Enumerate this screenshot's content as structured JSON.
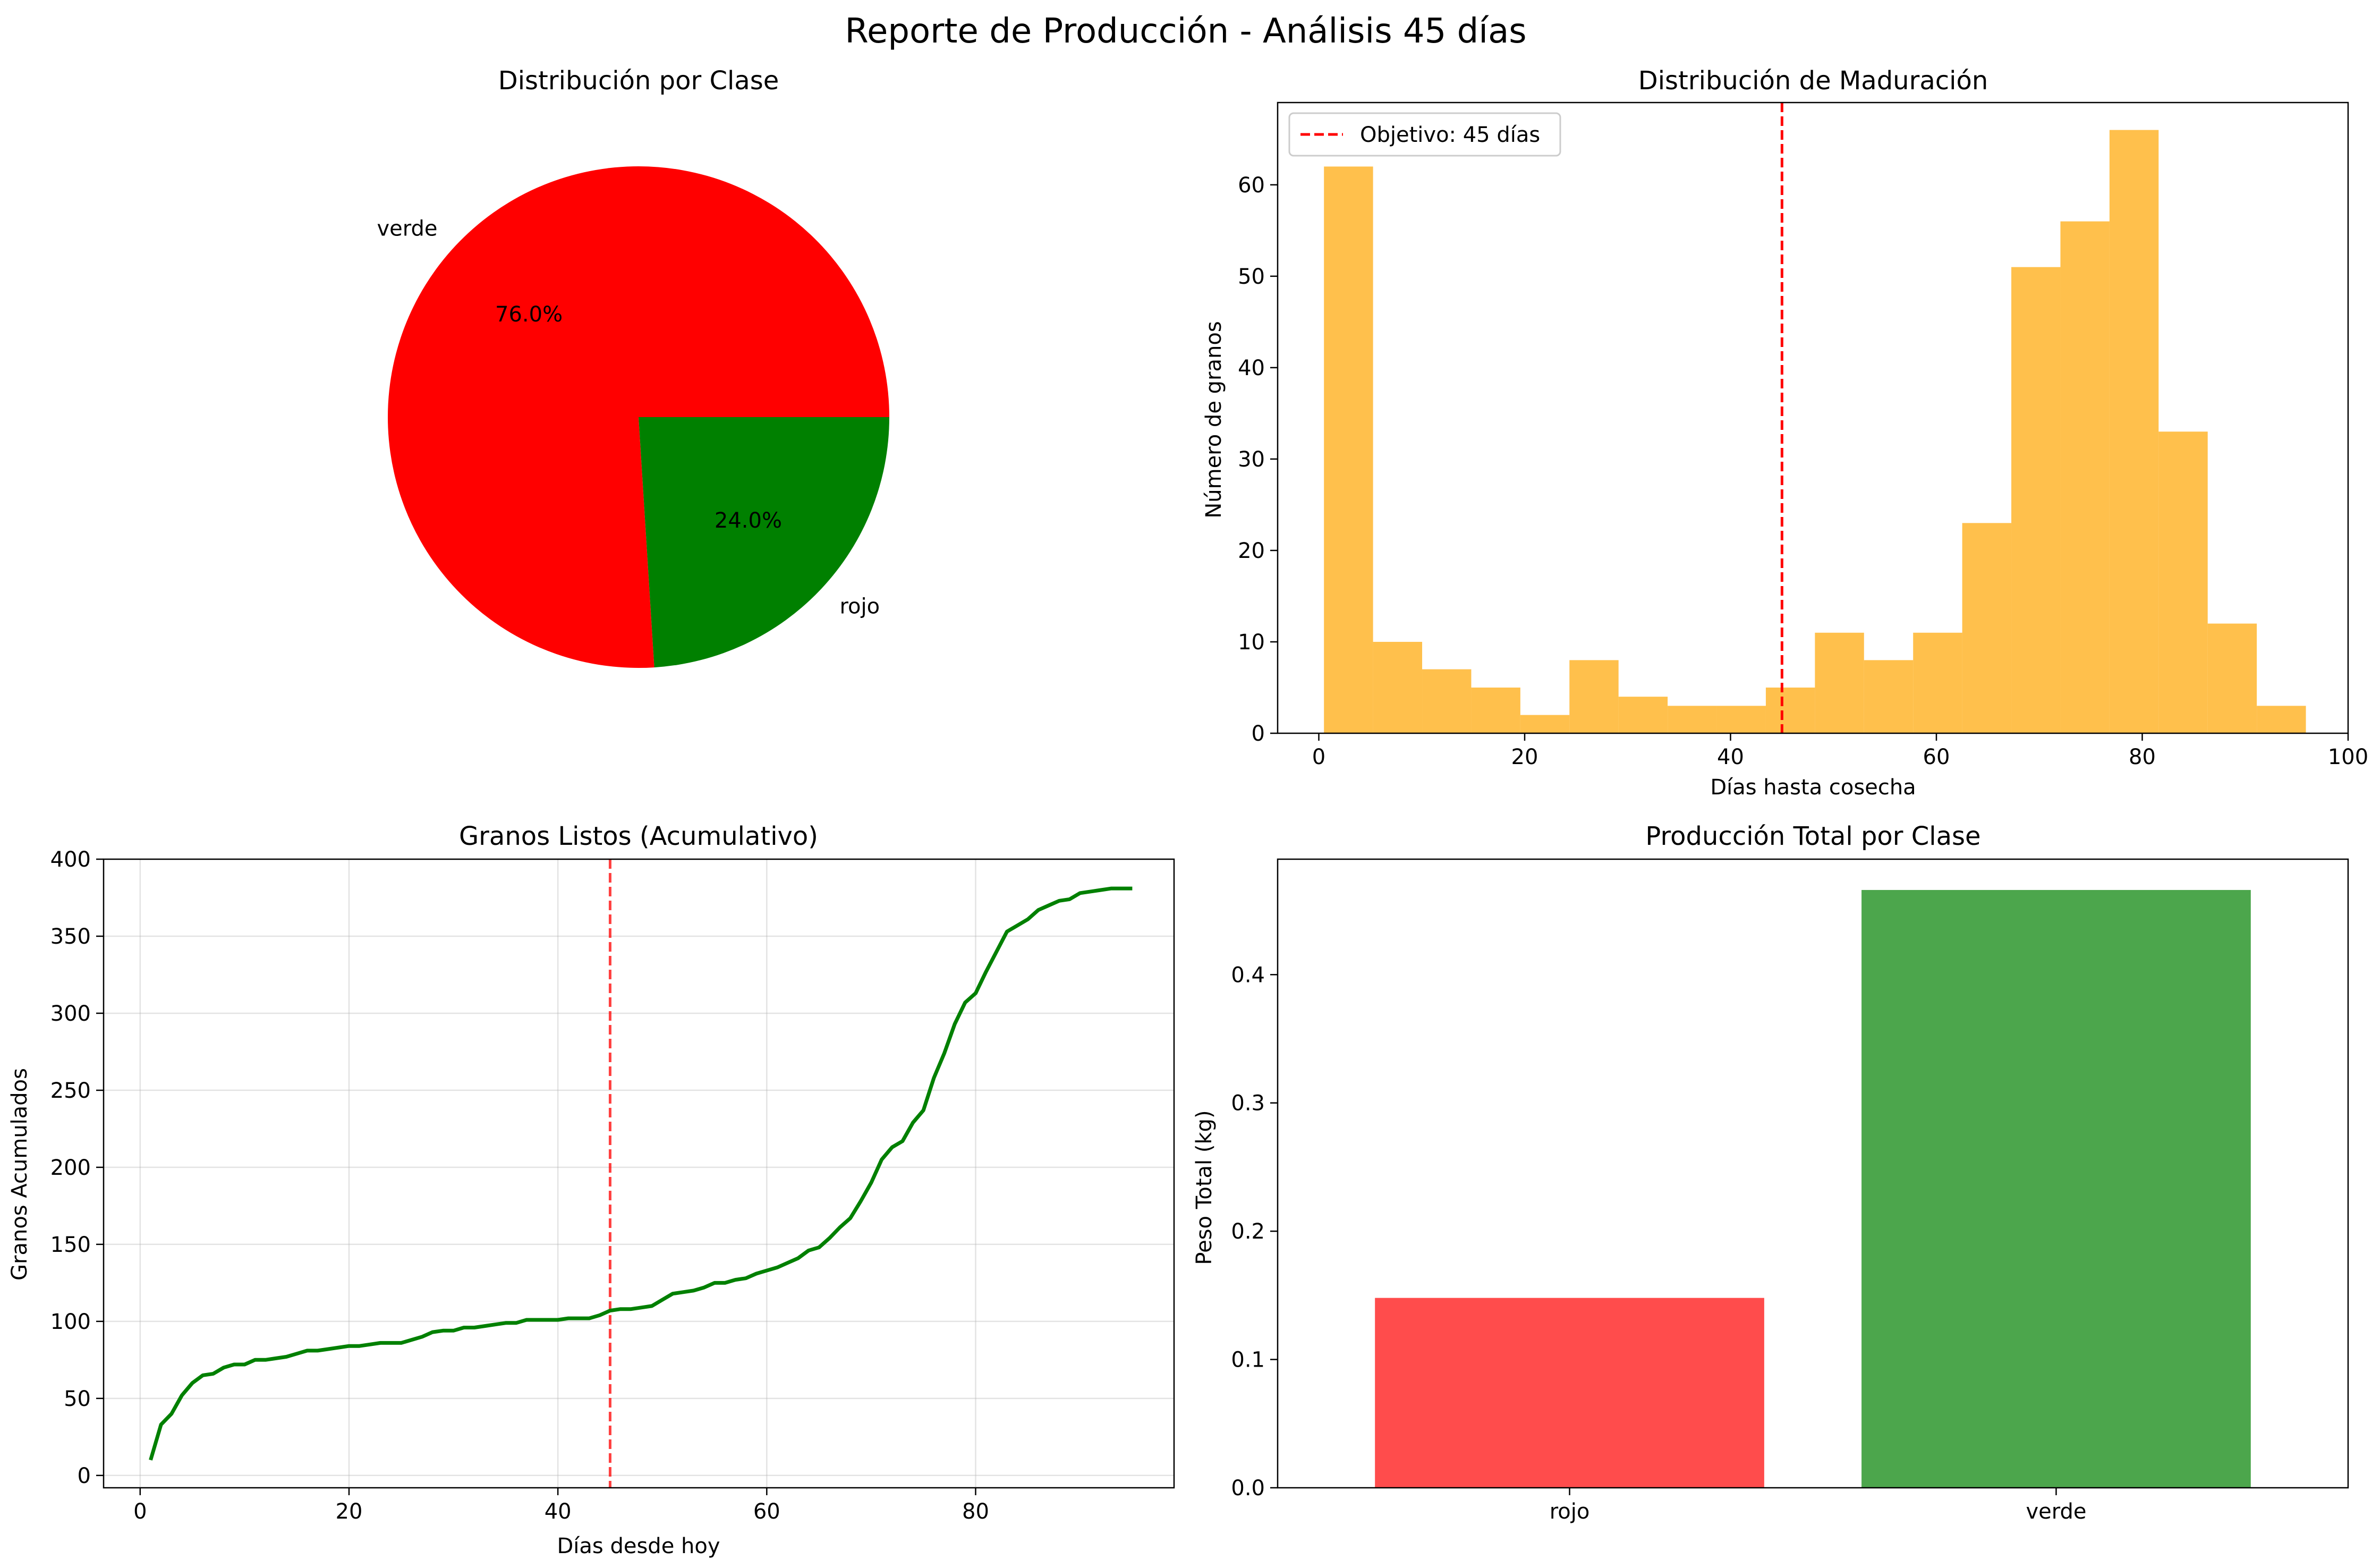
{
  "figure_title": "Reporte de Producción - Análisis 45 días",
  "chart_data": [
    {
      "type": "pie",
      "title": "Distribución por Clase",
      "slices": [
        {
          "label": "verde",
          "pct_label": "76.0%",
          "value": 76.0,
          "color": "#ff0000"
        },
        {
          "label": "rojo",
          "pct_label": "24.0%",
          "value": 24.0,
          "color": "#008000"
        }
      ]
    },
    {
      "type": "bar",
      "subtype": "histogram",
      "title": "Distribución de Maduración",
      "xlabel": "Días hasta cosecha",
      "ylabel": "Número de granos",
      "xlim": [
        -4,
        100
      ],
      "ylim": [
        0,
        69
      ],
      "xticks": [
        0,
        20,
        40,
        60,
        80,
        100
      ],
      "yticks": [
        0,
        10,
        20,
        30,
        40,
        50,
        60
      ],
      "bin_start": 0.5,
      "bin_width": 4.77,
      "counts": [
        62,
        10,
        7,
        5,
        2,
        8,
        4,
        3,
        3,
        5,
        11,
        8,
        11,
        23,
        51,
        56,
        66,
        33,
        12,
        3
      ],
      "bar_color": "#ffa500",
      "target_line": {
        "x": 45,
        "label": "Objetivo: 45 días",
        "color": "#ff0000"
      },
      "legend_position": "upper-left"
    },
    {
      "type": "line",
      "title": "Granos Listos (Acumulativo)",
      "xlabel": "Días desde hoy",
      "ylabel": "Granos Acumulados",
      "xlim": [
        -3.5,
        99
      ],
      "ylim": [
        -8,
        400
      ],
      "xticks": [
        0,
        20,
        40,
        60,
        80
      ],
      "yticks": [
        0,
        50,
        100,
        150,
        200,
        250,
        300,
        350,
        400
      ],
      "grid": true,
      "line_color": "#008000",
      "target_line": {
        "x": 45,
        "color": "#ff0000"
      },
      "points": [
        [
          1,
          10
        ],
        [
          2,
          33
        ],
        [
          3,
          40
        ],
        [
          4,
          52
        ],
        [
          5,
          60
        ],
        [
          6,
          65
        ],
        [
          7,
          66
        ],
        [
          8,
          70
        ],
        [
          9,
          72
        ],
        [
          10,
          72
        ],
        [
          11,
          75
        ],
        [
          12,
          75
        ],
        [
          13,
          76
        ],
        [
          14,
          77
        ],
        [
          15,
          79
        ],
        [
          16,
          81
        ],
        [
          17,
          81
        ],
        [
          18,
          82
        ],
        [
          19,
          83
        ],
        [
          20,
          84
        ],
        [
          21,
          84
        ],
        [
          22,
          85
        ],
        [
          23,
          86
        ],
        [
          24,
          86
        ],
        [
          25,
          86
        ],
        [
          26,
          88
        ],
        [
          27,
          90
        ],
        [
          28,
          93
        ],
        [
          29,
          94
        ],
        [
          30,
          94
        ],
        [
          31,
          96
        ],
        [
          32,
          96
        ],
        [
          33,
          97
        ],
        [
          34,
          98
        ],
        [
          35,
          99
        ],
        [
          36,
          99
        ],
        [
          37,
          101
        ],
        [
          38,
          101
        ],
        [
          39,
          101
        ],
        [
          40,
          101
        ],
        [
          41,
          102
        ],
        [
          42,
          102
        ],
        [
          43,
          102
        ],
        [
          44,
          104
        ],
        [
          45,
          107
        ],
        [
          46,
          108
        ],
        [
          47,
          108
        ],
        [
          48,
          109
        ],
        [
          49,
          110
        ],
        [
          50,
          114
        ],
        [
          51,
          118
        ],
        [
          52,
          119
        ],
        [
          53,
          120
        ],
        [
          54,
          122
        ],
        [
          55,
          125
        ],
        [
          56,
          125
        ],
        [
          57,
          127
        ],
        [
          58,
          128
        ],
        [
          59,
          131
        ],
        [
          60,
          133
        ],
        [
          61,
          135
        ],
        [
          62,
          138
        ],
        [
          63,
          141
        ],
        [
          64,
          146
        ],
        [
          65,
          148
        ],
        [
          66,
          154
        ],
        [
          67,
          161
        ],
        [
          68,
          167
        ],
        [
          69,
          178
        ],
        [
          70,
          190
        ],
        [
          71,
          205
        ],
        [
          72,
          213
        ],
        [
          73,
          217
        ],
        [
          74,
          229
        ],
        [
          75,
          237
        ],
        [
          76,
          258
        ],
        [
          77,
          274
        ],
        [
          78,
          293
        ],
        [
          79,
          307
        ],
        [
          80,
          313
        ],
        [
          81,
          327
        ],
        [
          82,
          340
        ],
        [
          83,
          353
        ],
        [
          84,
          357
        ],
        [
          85,
          361
        ],
        [
          86,
          367
        ],
        [
          87,
          370
        ],
        [
          88,
          373
        ],
        [
          89,
          374
        ],
        [
          90,
          378
        ],
        [
          91,
          379
        ],
        [
          92,
          380
        ],
        [
          93,
          381
        ],
        [
          94,
          381
        ],
        [
          95,
          381
        ]
      ]
    },
    {
      "type": "bar",
      "title": "Producción Total por Clase",
      "xlabel": "",
      "ylabel": "Peso Total (kg)",
      "categories": [
        "rojo",
        "verde"
      ],
      "values": [
        0.148,
        0.466
      ],
      "colors": [
        "#ff4c4c",
        "#4ca64c"
      ],
      "ylim": [
        0,
        0.49
      ],
      "yticks": [
        "0.0",
        "0.1",
        "0.2",
        "0.3",
        "0.4"
      ]
    }
  ]
}
